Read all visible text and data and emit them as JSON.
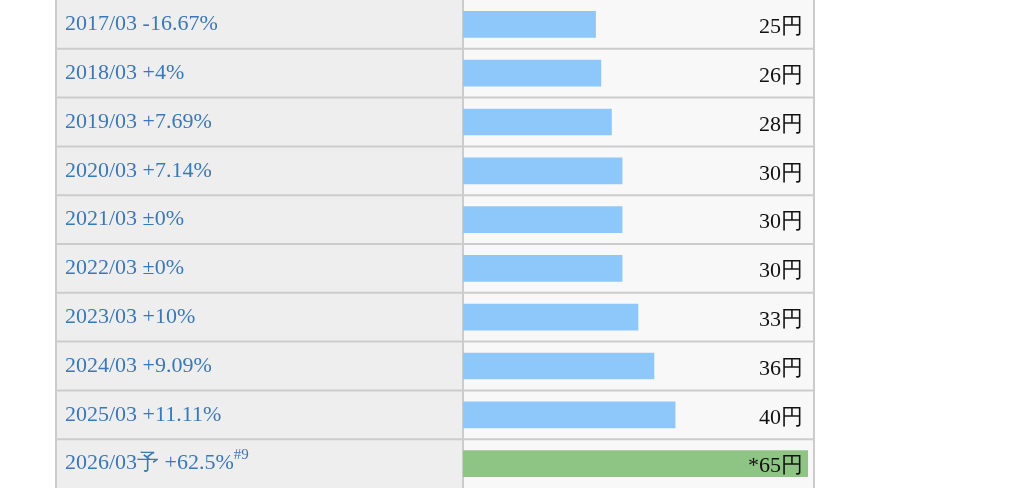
{
  "chart_data": {
    "type": "bar",
    "orientation": "horizontal",
    "categories": [
      "2017/03 -16.67%",
      "2018/03 +4%",
      "2019/03 +7.69%",
      "2020/03 +7.14%",
      "2021/03 ±0%",
      "2022/03 ±0%",
      "2023/03 +10%",
      "2024/03 +9.09%",
      "2025/03 +11.11%",
      "2026/03予 +62.5%$^{#9}$"
    ],
    "values": [
      25,
      26,
      28,
      30,
      30,
      30,
      33,
      36,
      40,
      65
    ],
    "colors": [
      "#8ec8fa",
      "#8ec8fa",
      "#8ec8fa",
      "#8ec8fa",
      "#8ec8fa",
      "#8ec8fa",
      "#8ec8fa",
      "#8ec8fa",
      "#8ec8fa",
      "#8fc584"
    ],
    "value_labels": [
      "25円",
      "26円",
      "28円",
      "30円",
      "30円",
      "30円",
      "33円",
      "36円",
      "40円",
      "*65円"
    ],
    "xlim": [
      0,
      66
    ]
  }
}
